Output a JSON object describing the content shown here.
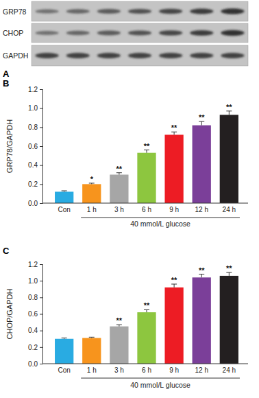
{
  "blot": {
    "panel": "A",
    "rows": [
      "GRP78",
      "CHOP",
      "GAPDH"
    ]
  },
  "chart_data": [
    {
      "type": "bar",
      "annotations": {
        "panel": "B",
        "significance": [
          null,
          "*",
          "**",
          "**",
          "**",
          "**",
          "**"
        ]
      },
      "ylabel": "GRP78/GAPDH",
      "xlabel": "40 mmol/L glucose",
      "categories": [
        "Con",
        "1 h",
        "3 h",
        "6 h",
        "9 h",
        "12 h",
        "24 h"
      ],
      "values": [
        0.12,
        0.2,
        0.3,
        0.53,
        0.72,
        0.82,
        0.93
      ],
      "errors": [
        0.01,
        0.01,
        0.02,
        0.03,
        0.03,
        0.04,
        0.04
      ],
      "colors": [
        "#29abe2",
        "#f7941d",
        "#a6a6a6",
        "#8dc63f",
        "#ed1c24",
        "#7b3f99",
        "#231f20"
      ],
      "ylim": [
        0,
        1.2
      ],
      "yticks": [
        {
          "value": 0,
          "label": "0.0"
        },
        0.2,
        0.4,
        0.6,
        0.8,
        {
          "value": 1,
          "label": "1.0"
        },
        1.2
      ],
      "grid": false
    },
    {
      "type": "bar",
      "annotations": {
        "panel": "C",
        "significance": [
          null,
          null,
          "**",
          "**",
          "**",
          "**",
          "**"
        ]
      },
      "ylabel": "CHOP/GAPDH",
      "xlabel": "40 mmol/L glucose",
      "categories": [
        "Con",
        "1 h",
        "3 h",
        "6 h",
        "9 h",
        "12 h",
        "24 h"
      ],
      "values": [
        0.3,
        0.31,
        0.45,
        0.62,
        0.92,
        1.04,
        1.06
      ],
      "errors": [
        0.01,
        0.01,
        0.02,
        0.03,
        0.04,
        0.04,
        0.04
      ],
      "colors": [
        "#29abe2",
        "#f7941d",
        "#a6a6a6",
        "#8dc63f",
        "#ed1c24",
        "#7b3f99",
        "#231f20"
      ],
      "ylim": [
        0,
        1.2
      ],
      "yticks": [
        {
          "value": 0,
          "label": "0.0"
        },
        0.2,
        0.4,
        0.6,
        0.8,
        {
          "value": 1,
          "label": "1.0"
        },
        1.2
      ],
      "grid": false
    }
  ]
}
